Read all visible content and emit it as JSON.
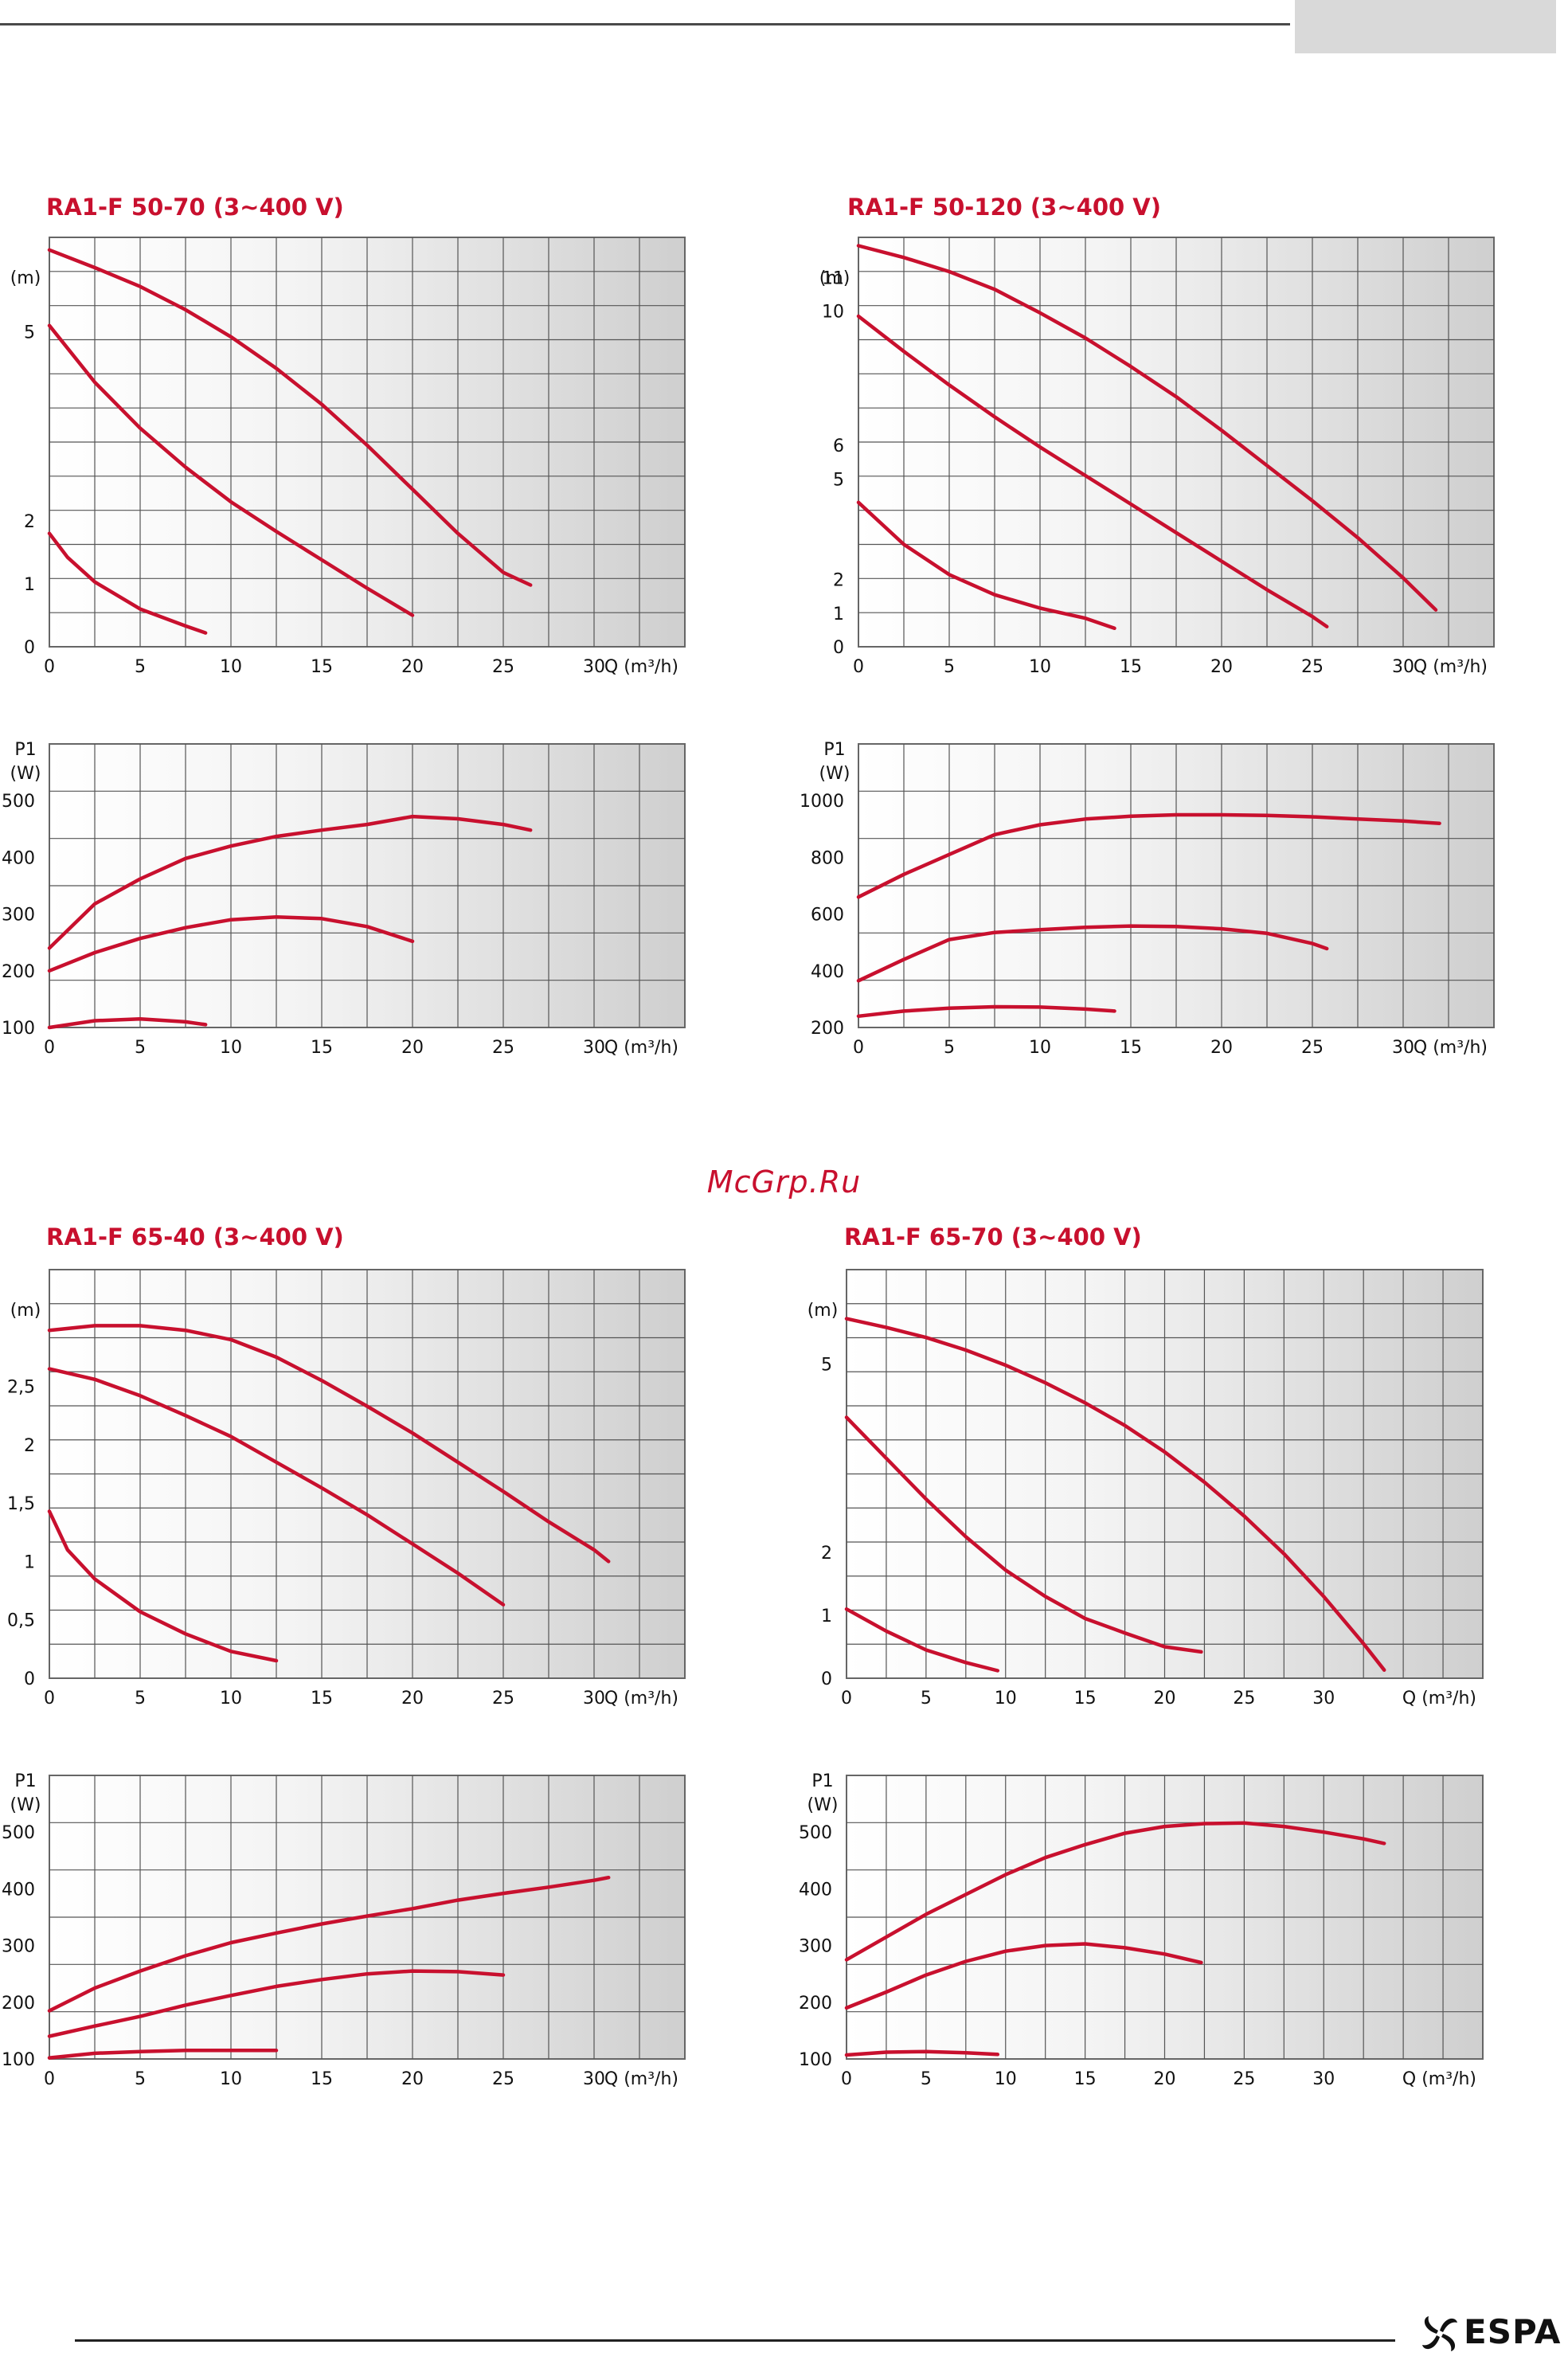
{
  "page": {
    "watermark": "McGrp.Ru",
    "brand": "ESPA"
  },
  "chart_data": [
    {
      "id": "c1",
      "type": "line",
      "title": "RA1-F 50-70 (3~400 V)",
      "x_unit_label": "Q (m³/h)",
      "xlim": [
        0,
        35
      ],
      "x_ticks": [
        0,
        5,
        10,
        15,
        20,
        25,
        30
      ],
      "head": {
        "y_unit_label": "(m)",
        "ylim": [
          0,
          6.5
        ],
        "y_ticks": [
          0,
          1,
          2,
          5
        ],
        "series": [
          {
            "x": [
              0,
              2.5,
              5,
              7.5,
              10,
              12.5,
              15,
              17.5,
              20,
              22.5,
              25,
              26.5
            ],
            "y": [
              6.3,
              6.02,
              5.72,
              5.35,
              4.92,
              4.42,
              3.85,
              3.2,
              2.5,
              1.8,
              1.18,
              0.98
            ]
          },
          {
            "x": [
              0,
              2.5,
              5,
              7.5,
              10,
              12.5,
              15,
              17.5,
              20
            ],
            "y": [
              5.1,
              4.2,
              3.47,
              2.85,
              2.3,
              1.83,
              1.38,
              0.93,
              0.5
            ]
          },
          {
            "x": [
              0,
              1,
              2.5,
              5,
              7.5,
              8.6
            ],
            "y": [
              1.8,
              1.42,
              1.03,
              0.6,
              0.33,
              0.22
            ]
          }
        ]
      },
      "power": {
        "y_unit_label": "(W)",
        "y_name": "P1",
        "ylim": [
          100,
          600
        ],
        "y_ticks": [
          100,
          200,
          300,
          400,
          500
        ],
        "series": [
          {
            "x": [
              0,
              2.5,
              5,
              7.5,
              10,
              12.5,
              15,
              17.5,
              20,
              22.5,
              25,
              26.5
            ],
            "y": [
              240,
              318,
              362,
              398,
              420,
              437,
              448,
              458,
              472,
              468,
              458,
              448
            ]
          },
          {
            "x": [
              0,
              2.5,
              5,
              7.5,
              10,
              12.5,
              15,
              17.5,
              20
            ],
            "y": [
              200,
              232,
              257,
              276,
              290,
              295,
              292,
              278,
              252
            ]
          },
          {
            "x": [
              0,
              2.5,
              5,
              7.5,
              8.6
            ],
            "y": [
              100,
              112,
              115,
              110,
              105
            ]
          }
        ]
      }
    },
    {
      "id": "c2",
      "type": "line",
      "title": "RA1-F 50-120 (3~400 V)",
      "x_unit_label": "Q (m³/h)",
      "xlim": [
        0,
        35
      ],
      "x_ticks": [
        0,
        5,
        10,
        15,
        20,
        25,
        30
      ],
      "head": {
        "y_unit_label": "(m)",
        "ylim": [
          0,
          12.2
        ],
        "y_ticks": [
          0,
          1,
          2,
          5,
          6,
          10,
          11
        ],
        "series": [
          {
            "x": [
              0,
              2.5,
              5,
              7.5,
              10,
              12.5,
              15,
              17.5,
              20,
              22.5,
              25,
              27.5,
              30,
              31.8
            ],
            "y": [
              11.95,
              11.6,
              11.18,
              10.65,
              9.95,
              9.2,
              8.35,
              7.45,
              6.45,
              5.4,
              4.35,
              3.25,
              2.05,
              1.1
            ]
          },
          {
            "x": [
              0,
              2.5,
              5,
              7.5,
              10,
              12.5,
              15,
              17.5,
              20,
              22.5,
              25,
              25.8
            ],
            "y": [
              9.85,
              8.8,
              7.8,
              6.85,
              5.95,
              5.1,
              4.25,
              3.4,
              2.55,
              1.7,
              0.9,
              0.6
            ]
          },
          {
            "x": [
              0,
              2.5,
              5,
              7.5,
              10,
              12.5,
              14.1
            ],
            "y": [
              4.3,
              3.05,
              2.15,
              1.55,
              1.15,
              0.85,
              0.55
            ]
          }
        ]
      },
      "power": {
        "y_unit_label": "(W)",
        "y_name": "P1",
        "ylim": [
          200,
          1200
        ],
        "y_ticks": [
          200,
          400,
          600,
          800,
          1000
        ],
        "series": [
          {
            "x": [
              0,
              2.5,
              5,
              7.5,
              10,
              12.5,
              15,
              17.5,
              20,
              22.5,
              25,
              27.5,
              30,
              32
            ],
            "y": [
              660,
              740,
              810,
              880,
              915,
              935,
              945,
              950,
              950,
              948,
              943,
              935,
              928,
              920
            ]
          },
          {
            "x": [
              0,
              2.5,
              5,
              7.5,
              10,
              12.5,
              15,
              17.5,
              20,
              22.5,
              25,
              25.8
            ],
            "y": [
              365,
              440,
              510,
              535,
              545,
              553,
              558,
              556,
              548,
              532,
              496,
              478
            ]
          },
          {
            "x": [
              0,
              2.5,
              5,
              7.5,
              10,
              12.5,
              14.1
            ],
            "y": [
              240,
              258,
              268,
              273,
              272,
              265,
              258
            ]
          }
        ]
      }
    },
    {
      "id": "c3",
      "type": "line",
      "title": "RA1-F 65-40 (3~400 V)",
      "x_unit_label": "Q (m³/h)",
      "xlim": [
        0,
        35
      ],
      "x_ticks": [
        0,
        5,
        10,
        15,
        20,
        25,
        30
      ],
      "head": {
        "y_unit_label": "(m)",
        "ylim": [
          0,
          3.5
        ],
        "y_ticks": [
          0,
          0.5,
          1,
          1.5,
          2,
          2.5
        ],
        "series": [
          {
            "x": [
              0,
              2.5,
              5,
              7.5,
              10,
              12.5,
              15,
              17.5,
              20,
              22.5,
              25,
              27.5,
              30,
              30.8
            ],
            "y": [
              2.98,
              3.02,
              3.02,
              2.98,
              2.9,
              2.75,
              2.55,
              2.33,
              2.1,
              1.85,
              1.6,
              1.34,
              1.1,
              1.0
            ]
          },
          {
            "x": [
              0,
              2.5,
              5,
              7.5,
              10,
              12.5,
              15,
              17.5,
              20,
              22.5,
              25
            ],
            "y": [
              2.65,
              2.56,
              2.42,
              2.25,
              2.07,
              1.85,
              1.63,
              1.4,
              1.15,
              0.9,
              0.63
            ]
          },
          {
            "x": [
              0,
              1,
              2.5,
              5,
              7.5,
              10,
              12.5
            ],
            "y": [
              1.43,
              1.1,
              0.85,
              0.57,
              0.38,
              0.23,
              0.15
            ]
          }
        ]
      },
      "power": {
        "y_unit_label": "(W)",
        "y_name": "P1",
        "ylim": [
          100,
          600
        ],
        "y_ticks": [
          100,
          200,
          300,
          400,
          500
        ],
        "series": [
          {
            "x": [
              0,
              2.5,
              5,
              7.5,
              10,
              12.5,
              15,
              17.5,
              20,
              22.5,
              25,
              27.5,
              30,
              30.8
            ],
            "y": [
              185,
              225,
              255,
              282,
              305,
              322,
              338,
              352,
              365,
              380,
              392,
              403,
              415,
              420
            ]
          },
          {
            "x": [
              0,
              2.5,
              5,
              7.5,
              10,
              12.5,
              15,
              17.5,
              20,
              22.5,
              25
            ],
            "y": [
              140,
              158,
              175,
              195,
              212,
              228,
              240,
              250,
              255,
              254,
              248
            ]
          },
          {
            "x": [
              0,
              2.5,
              5,
              7.5,
              10,
              12.5
            ],
            "y": [
              102,
              110,
              113,
              115,
              115,
              115
            ]
          }
        ]
      }
    },
    {
      "id": "c4",
      "type": "line",
      "title": "RA1-F 65-70 (3~400 V)",
      "x_unit_label": "Q (m³/h)",
      "xlim": [
        0,
        40
      ],
      "x_ticks": [
        0,
        5,
        10,
        15,
        20,
        25,
        30
      ],
      "head": {
        "y_unit_label": "(m)",
        "ylim": [
          0,
          6.5
        ],
        "y_ticks": [
          0,
          1,
          2,
          5
        ],
        "series": [
          {
            "x": [
              0,
              2.5,
              5,
              7.5,
              10,
              12.5,
              15,
              17.5,
              20,
              22.5,
              25,
              27.5,
              30,
              32.5,
              33.8
            ],
            "y": [
              5.72,
              5.58,
              5.42,
              5.22,
              4.98,
              4.7,
              4.38,
              4.02,
              3.6,
              3.12,
              2.58,
              1.98,
              1.3,
              0.55,
              0.13
            ]
          },
          {
            "x": [
              0,
              2.5,
              5,
              7.5,
              10,
              12.5,
              15,
              17.5,
              20,
              22.3
            ],
            "y": [
              4.15,
              3.5,
              2.85,
              2.25,
              1.72,
              1.3,
              0.95,
              0.72,
              0.5,
              0.42
            ]
          },
          {
            "x": [
              0,
              2.5,
              5,
              7.5,
              9.5
            ],
            "y": [
              1.1,
              0.75,
              0.45,
              0.25,
              0.12
            ]
          }
        ]
      },
      "power": {
        "y_unit_label": "(W)",
        "y_name": "P1",
        "ylim": [
          100,
          600
        ],
        "y_ticks": [
          100,
          200,
          300,
          400,
          500
        ],
        "series": [
          {
            "x": [
              0,
              2.5,
              5,
              7.5,
              10,
              12.5,
              15,
              17.5,
              20,
              22.5,
              25,
              27.5,
              30,
              32.5,
              33.8
            ],
            "y": [
              275,
              315,
              355,
              390,
              425,
              455,
              478,
              498,
              510,
              515,
              516,
              510,
              500,
              488,
              480
            ]
          },
          {
            "x": [
              0,
              2.5,
              5,
              7.5,
              10,
              12.5,
              15,
              17.5,
              20,
              22.3
            ],
            "y": [
              190,
              218,
              248,
              272,
              290,
              300,
              303,
              296,
              285,
              270
            ]
          },
          {
            "x": [
              0,
              2.5,
              5,
              7.5,
              9.5
            ],
            "y": [
              107,
              112,
              113,
              111,
              108
            ]
          }
        ]
      }
    }
  ]
}
